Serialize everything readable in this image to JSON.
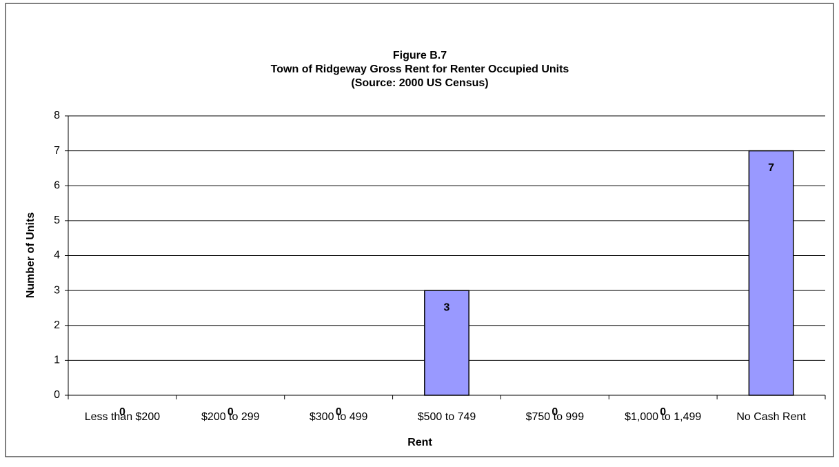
{
  "chart_data": {
    "type": "bar",
    "title": [
      "Figure B.7",
      "Town of Ridgeway Gross Rent for Renter Occupied Units",
      "(Source:  2000 US Census)"
    ],
    "x_label": "Rent",
    "y_label": "Number of Units",
    "categories": [
      "Less than $200",
      "$200 to 299",
      "$300 to 499",
      "$500 to 749",
      "$750 to 999",
      "$1,000 to 1,499",
      "No Cash Rent"
    ],
    "values": [
      0,
      0,
      0,
      3,
      0,
      0,
      7
    ],
    "color": "#9999ff",
    "ylim": [
      0,
      8
    ],
    "yticks": [
      0,
      1,
      2,
      3,
      4,
      5,
      6,
      7,
      8
    ],
    "grid": true
  }
}
